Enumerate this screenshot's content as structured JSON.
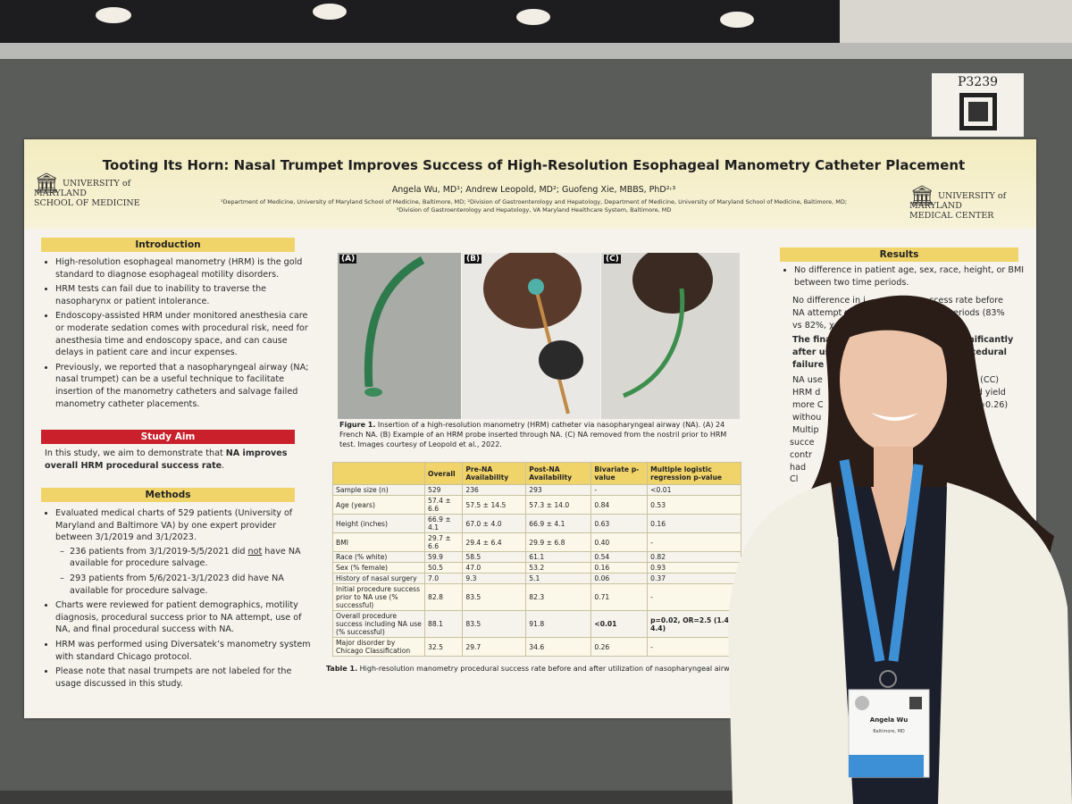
{
  "board_label": "P3239",
  "header": {
    "title": "Tooting Its Horn: Nasal Trumpet Improves Success of High-Resolution Esophageal Manometry Catheter Placement",
    "authors": "Angela Wu, MD¹; Andrew Leopold, MD²; Guofeng Xie, MBBS, PhD²˒³",
    "affiliations": [
      "¹Department of Medicine, University of Maryland School of Medicine, Baltimore, MD; ²Division of Gastroenterology and Hepatology, Department of Medicine, University of Maryland School of Medicine, Baltimore, MD;",
      "³Division of Gastroenterology and Hepatology, VA Maryland Healthcare System, Baltimore, MD"
    ],
    "logo_left": [
      "UNIVERSITY of MARYLAND",
      "SCHOOL OF MEDICINE"
    ],
    "logo_right": [
      "UNIVERSITY of MARYLAND",
      "MEDICAL CENTER"
    ]
  },
  "introduction": {
    "heading": "Introduction",
    "bullets": [
      "High-resolution esophageal manometry (HRM) is the gold standard to diagnose esophageal motility disorders.",
      "HRM tests can fail due to inability to traverse the nasopharynx or patient intolerance.",
      "Endoscopy-assisted HRM under monitored anesthesia care or moderate sedation comes with procedural risk, need for anesthesia time and endoscopy space, and can cause delays in patient care and incur expenses.",
      "Previously, we reported that a nasopharyngeal airway (NA; nasal trumpet) can be a useful technique to facilitate insertion of the manometry catheters and salvage failed manometry catheter placements."
    ]
  },
  "study_aim": {
    "heading": "Study Aim",
    "text": "In this study, we aim to demonstrate that ",
    "emphasis": "NA improves overall HRM procedural success rate",
    "end": "."
  },
  "methods": {
    "heading": "Methods",
    "bullets": [
      {
        "text": "Evaluated medical charts of 529 patients (University of Maryland and Baltimore VA) by one expert provider between 3/1/2019 and 3/1/2023.",
        "sub_bullets": [
          {
            "before": "236 patients from 3/1/2019-5/5/2021 did ",
            "underlined": "not",
            "after": " have NA available for procedure salvage."
          },
          {
            "before": "293 patients from 5/6/2021-3/1/2023 did have NA available for procedure salvage."
          }
        ]
      },
      {
        "text": "Charts were reviewed for patient demographics, motility diagnosis, procedural success prior to NA attempt, use of NA, and final procedural success with NA."
      },
      {
        "text": "HRM was performed using Diversatek’s manometry system with standard Chicago protocol."
      },
      {
        "text": "Please note that nasal trumpets are not labeled for the usage discussed in this study."
      }
    ]
  },
  "figure": {
    "panels": [
      "(A)",
      "(B)",
      "(C)"
    ],
    "caption_label": "Figure 1.",
    "caption": " Insertion of a high-resolution manometry (HRM) catheter via nasopharyngeal airway (NA). (A) 24 French NA. (B) Example of an HRM probe inserted through NA. (C) NA removed from the nostril prior to HRM test. Images courtesy of Leopold et al., 2022."
  },
  "table": {
    "columns": [
      null,
      "Overall",
      "Pre-NA Availability",
      "Post-NA Availability",
      "Bivariate p-value",
      "Multiple logistic regression p-value"
    ],
    "rows": [
      [
        "Sample size (n)",
        "529",
        "236",
        "293",
        "-",
        "<0.01"
      ],
      [
        "Age (years)",
        "57.4 ± 6.6",
        "57.5 ± 14.5",
        "57.3 ± 14.0",
        "0.84",
        "0.53"
      ],
      [
        "Height (inches)",
        "66.9 ± 4.1",
        "67.0 ± 4.0",
        "66.9 ± 4.1",
        "0.63",
        "0.16"
      ],
      [
        "BMI",
        "29.7 ± 6.6",
        "29.4 ± 6.4",
        "29.9 ± 6.8",
        "0.40",
        "-"
      ],
      [
        "Race (% white)",
        "59.9",
        "58.5",
        "61.1",
        "0.54",
        "0.82"
      ],
      [
        "Sex (% female)",
        "50.5",
        "47.0",
        "53.2",
        "0.16",
        "0.93"
      ],
      [
        "History of nasal surgery",
        "7.0",
        "9.3",
        "5.1",
        "0.06",
        "0.37"
      ],
      [
        "Initial procedure success prior to NA use (% successful)",
        "82.8",
        "83.5",
        "82.3",
        "0.71",
        "-"
      ],
      [
        "Overall procedure success including NA use (% successful)",
        "88.1",
        "83.5",
        "91.8",
        "<0.01",
        "p=0.02, OR=2.5 (1.4, 4.4)"
      ],
      [
        "Major disorder by Chicago Classification",
        "32.5",
        "29.7",
        "34.6",
        "0.26",
        "-"
      ]
    ],
    "caption_label": "Table 1.",
    "caption": " High-resolution manometry procedural success rate before and after utilization of nasopharyngeal airway"
  },
  "results": {
    "heading": "Results",
    "bullets": [
      "No difference in patient age, sex, race, height, or BMI between two time periods."
    ],
    "fragments": [
      "No difference in i",
      "ccess rate before",
      "NA attempt w",
      "ime periods (83%",
      "vs 82%, χ=0",
      "The final p",
      "significantly",
      "after usi",
      "ocedural",
      "failure (",
      "NA use",
      "n (CC)",
      "HRM d",
      "did yield",
      "more C",
      "withou",
      "=0.26)",
      "Multip",
      "succe",
      "contr",
      "had",
      "Cl"
    ]
  },
  "badge": {
    "name": "Angela Wu",
    "location": "Baltimore, MD"
  }
}
